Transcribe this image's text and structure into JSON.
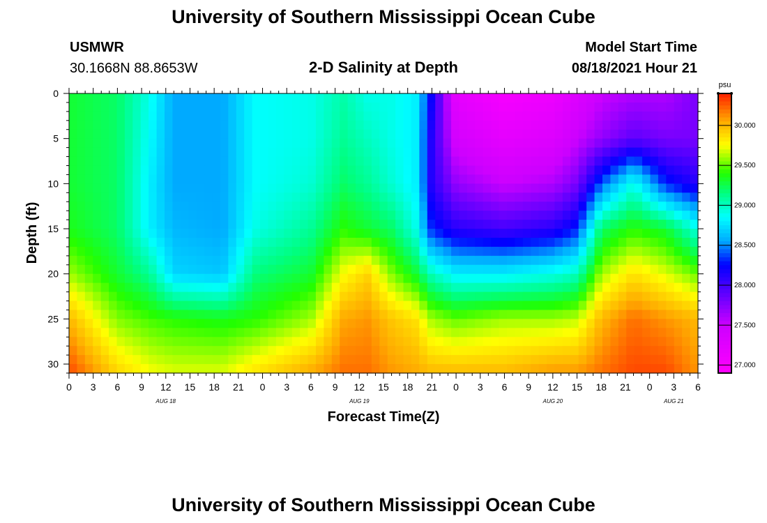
{
  "page": {
    "title_top": "University of Southern Mississippi Ocean Cube",
    "title_bottom": "University of Southern Mississippi Ocean Cube",
    "station_name": "USMWR",
    "coordinates": "30.1668N  88.8653W",
    "model_start_label": "Model Start Time",
    "model_start_value": "08/18/2021 Hour 21"
  },
  "chart_data": {
    "type": "heatmap",
    "title": "2-D Salinity at Depth",
    "xlabel": "Forecast Time(Z)",
    "ylabel": "Depth (ft)",
    "x_range_hours": [
      0,
      78
    ],
    "ylim": [
      0,
      31
    ],
    "x_tick_labels": [
      "0",
      "3",
      "6",
      "9",
      "12",
      "15",
      "18",
      "21",
      "0",
      "3",
      "6",
      "9",
      "12",
      "15",
      "18",
      "21",
      "0",
      "3",
      "6",
      "9",
      "12",
      "15",
      "18",
      "21",
      "0",
      "3",
      "6"
    ],
    "date_labels": [
      {
        "label": "AUG 18",
        "hour": 12
      },
      {
        "label": "AUG 19",
        "hour": 36
      },
      {
        "label": "AUG 20",
        "hour": 60
      },
      {
        "label": "AUG 21",
        "hour": 75
      }
    ],
    "y_ticks": [
      0,
      5,
      10,
      15,
      20,
      25,
      30
    ],
    "colorbar": {
      "unit": "psu",
      "min": 26.9,
      "max": 30.4,
      "tick_values": [
        27.0,
        27.5,
        28.0,
        28.5,
        29.0,
        29.5,
        30.0
      ],
      "tick_labels": [
        "27.000",
        "27.500",
        "28.000",
        "28.500",
        "29.000",
        "29.500",
        "30.000"
      ],
      "stops": [
        {
          "v": 26.9,
          "color": "#ff00ff"
        },
        {
          "v": 27.5,
          "color": "#cc00ff"
        },
        {
          "v": 27.85,
          "color": "#6a00ff"
        },
        {
          "v": 28.25,
          "color": "#0000ff"
        },
        {
          "v": 28.55,
          "color": "#00aaff"
        },
        {
          "v": 28.85,
          "color": "#00ffff"
        },
        {
          "v": 29.15,
          "color": "#00ff80"
        },
        {
          "v": 29.4,
          "color": "#22ff00"
        },
        {
          "v": 29.75,
          "color": "#ffff00"
        },
        {
          "v": 30.05,
          "color": "#ffaa00"
        },
        {
          "v": 30.4,
          "color": "#ff2000"
        }
      ]
    },
    "profiles": {
      "depths_ft": [
        0,
        5,
        10,
        15,
        20,
        25,
        31
      ],
      "columns": [
        {
          "hour": 0,
          "values": [
            29.3,
            29.3,
            29.3,
            29.35,
            29.6,
            30.0,
            30.3
          ]
        },
        {
          "hour": 6,
          "values": [
            29.2,
            29.2,
            29.2,
            29.2,
            29.3,
            29.55,
            29.9
          ]
        },
        {
          "hour": 10,
          "values": [
            28.9,
            28.85,
            28.8,
            28.8,
            29.1,
            29.45,
            29.75
          ]
        },
        {
          "hour": 13,
          "values": [
            28.55,
            28.55,
            28.55,
            28.6,
            28.7,
            29.4,
            29.7
          ]
        },
        {
          "hour": 19,
          "values": [
            28.55,
            28.55,
            28.55,
            28.55,
            28.65,
            29.35,
            29.7
          ]
        },
        {
          "hour": 23,
          "values": [
            28.85,
            28.85,
            28.85,
            28.9,
            29.15,
            29.4,
            29.85
          ]
        },
        {
          "hour": 30,
          "values": [
            28.9,
            28.9,
            28.95,
            29.1,
            29.3,
            29.6,
            30.05
          ]
        },
        {
          "hour": 34,
          "values": [
            29.05,
            29.1,
            29.2,
            29.4,
            29.75,
            30.05,
            30.2
          ]
        },
        {
          "hour": 37,
          "values": [
            28.9,
            29.0,
            29.1,
            29.3,
            29.9,
            30.1,
            30.2
          ]
        },
        {
          "hour": 40,
          "values": [
            28.9,
            28.9,
            28.95,
            29.2,
            29.55,
            29.95,
            30.1
          ]
        },
        {
          "hour": 43,
          "values": [
            28.8,
            28.8,
            28.8,
            28.9,
            29.3,
            29.85,
            30.05
          ]
        },
        {
          "hour": 45,
          "values": [
            28.2,
            28.1,
            28.1,
            28.3,
            29.0,
            29.6,
            30.0
          ]
        },
        {
          "hour": 48,
          "values": [
            27.2,
            27.4,
            27.7,
            28.1,
            28.8,
            29.5,
            30.0
          ]
        },
        {
          "hour": 54,
          "values": [
            27.0,
            27.2,
            27.5,
            28.0,
            28.8,
            29.6,
            30.0
          ]
        },
        {
          "hour": 60,
          "values": [
            27.1,
            27.3,
            27.6,
            28.1,
            28.9,
            29.6,
            30.1
          ]
        },
        {
          "hour": 63,
          "values": [
            27.3,
            27.5,
            27.8,
            28.3,
            29.0,
            29.65,
            30.1
          ]
        },
        {
          "hour": 66,
          "values": [
            27.5,
            27.7,
            28.4,
            29.2,
            29.6,
            30.0,
            30.2
          ]
        },
        {
          "hour": 70,
          "values": [
            27.6,
            27.9,
            28.9,
            29.4,
            29.85,
            30.2,
            30.3
          ]
        },
        {
          "hour": 74,
          "values": [
            27.6,
            27.8,
            28.3,
            29.3,
            29.7,
            30.1,
            30.3
          ]
        },
        {
          "hour": 78,
          "values": [
            27.8,
            27.8,
            28.1,
            28.9,
            29.5,
            30.0,
            30.1
          ]
        }
      ]
    }
  }
}
